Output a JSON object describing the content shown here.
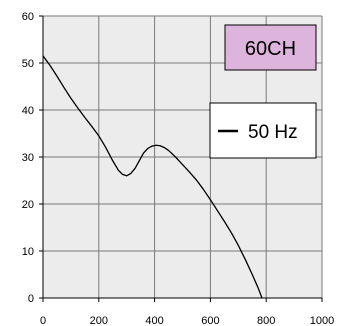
{
  "chart_data": {
    "type": "line",
    "title": "",
    "xlabel": "",
    "ylabel": "",
    "xlim": [
      0,
      1000
    ],
    "ylim": [
      0,
      60
    ],
    "x_ticks": [
      0,
      200,
      400,
      600,
      800,
      1000
    ],
    "y_ticks": [
      0,
      10,
      20,
      30,
      40,
      50,
      60
    ],
    "x_tick_labels": [
      "0",
      "200",
      "400",
      "600",
      "800",
      "1000"
    ],
    "y_tick_labels": [
      "0",
      "10",
      "20",
      "30",
      "40",
      "50",
      "60"
    ],
    "grid": true,
    "plot_background": "#ececec",
    "series": [
      {
        "name": "50 Hz",
        "color": "#000000",
        "points": [
          [
            0,
            51.5
          ],
          [
            25,
            49.5
          ],
          [
            50,
            47.2
          ],
          [
            75,
            44.8
          ],
          [
            100,
            42.5
          ],
          [
            125,
            40.4
          ],
          [
            150,
            38.4
          ],
          [
            175,
            36.5
          ],
          [
            200,
            34.5
          ],
          [
            225,
            32.0
          ],
          [
            250,
            29.2
          ],
          [
            270,
            27.2
          ],
          [
            285,
            26.3
          ],
          [
            300,
            26.0
          ],
          [
            315,
            26.5
          ],
          [
            330,
            27.6
          ],
          [
            345,
            29.2
          ],
          [
            360,
            30.8
          ],
          [
            375,
            31.8
          ],
          [
            390,
            32.3
          ],
          [
            405,
            32.5
          ],
          [
            420,
            32.4
          ],
          [
            435,
            32.0
          ],
          [
            450,
            31.4
          ],
          [
            475,
            30.0
          ],
          [
            500,
            28.4
          ],
          [
            525,
            26.8
          ],
          [
            550,
            25.1
          ],
          [
            575,
            23.1
          ],
          [
            600,
            20.9
          ],
          [
            625,
            18.6
          ],
          [
            650,
            16.3
          ],
          [
            675,
            13.9
          ],
          [
            700,
            11.2
          ],
          [
            725,
            8.2
          ],
          [
            750,
            5.0
          ],
          [
            770,
            2.3
          ],
          [
            785,
            0.0
          ]
        ]
      }
    ],
    "model_label": "60CH",
    "model_label_color": "#dcb4dc",
    "legend": {
      "position": "upper-right",
      "entries": [
        "50 Hz"
      ]
    }
  }
}
